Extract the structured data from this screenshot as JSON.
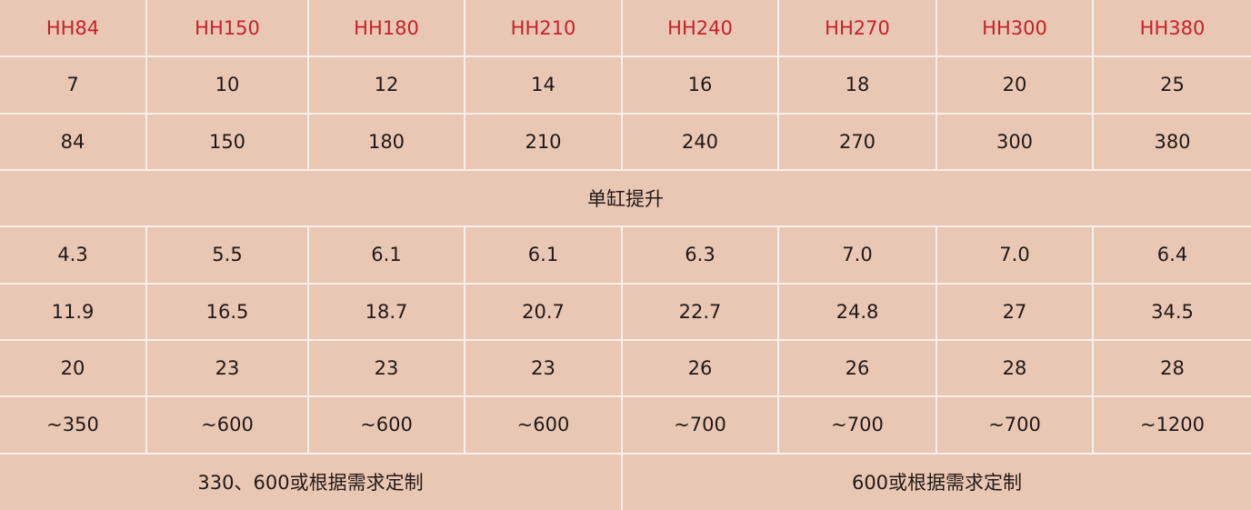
{
  "colors": {
    "background": "#e8c8b4",
    "header_text": "#c8202c",
    "body_text": "#231815",
    "grid_lines": "#fbeee6"
  },
  "table": {
    "header": [
      "HH84",
      "HH150",
      "HH180",
      "HH210",
      "HH240",
      "HH270",
      "HH300",
      "HH380"
    ],
    "rows": [
      [
        "7",
        "10",
        "12",
        "14",
        "16",
        "18",
        "20",
        "25"
      ],
      [
        "84",
        "150",
        "180",
        "210",
        "240",
        "270",
        "300",
        "380"
      ],
      [
        {
          "text": "单缸提升",
          "span": 8
        }
      ],
      [
        "4.3",
        "5.5",
        "6.1",
        "6.1",
        "6.3",
        "7.0",
        "7.0",
        "6.4"
      ],
      [
        "11.9",
        "16.5",
        "18.7",
        "20.7",
        "22.7",
        "24.8",
        "27",
        "34.5"
      ],
      [
        "20",
        "23",
        "23",
        "23",
        "26",
        "26",
        "28",
        "28"
      ],
      [
        "~350",
        "~600",
        "~600",
        "~600",
        "~700",
        "~700",
        "~700",
        "~1200"
      ],
      [
        {
          "text": "330、600或根据需求定制",
          "span": 4
        },
        {
          "text": "600或根据需求定制",
          "span": 4
        }
      ]
    ]
  }
}
